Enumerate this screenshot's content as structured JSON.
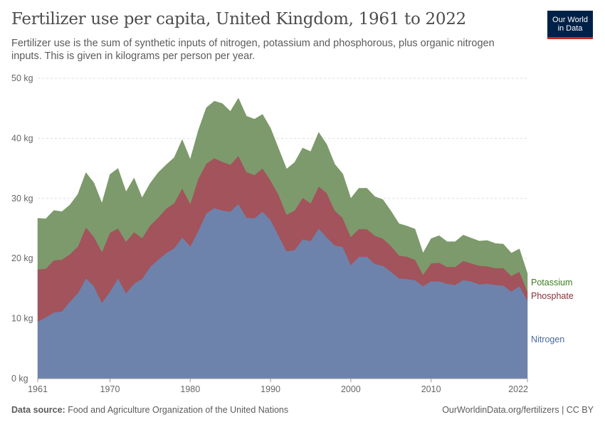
{
  "title": "Fertilizer use per capita, United Kingdom, 1961 to 2022",
  "subtitle": "Fertilizer use is the sum of synthetic inputs of nitrogen, potassium and phosphorous, plus organic nitrogen inputs. This is given in kilograms per person per year.",
  "logo": {
    "line1": "Our World",
    "line2": "in Data"
  },
  "footer": {
    "source_label": "Data source:",
    "source_text": "Food and Agriculture Organization of the United Nations",
    "url": "OurWorldinData.org/fertilizers | CC BY"
  },
  "chart_data": {
    "type": "area",
    "stacked": true,
    "title": "Fertilizer use per capita, United Kingdom, 1961 to 2022",
    "xlabel": "",
    "ylabel": "",
    "xlim": [
      1961,
      2022
    ],
    "ylim": [
      0,
      50
    ],
    "x_ticks": [
      1961,
      1970,
      1980,
      1990,
      2000,
      2010,
      2022
    ],
    "y_ticks": [
      0,
      10,
      20,
      30,
      40,
      50
    ],
    "y_tick_labels": [
      "0 kg",
      "10 kg",
      "20 kg",
      "30 kg",
      "40 kg",
      "50 kg"
    ],
    "grid": "horizontal",
    "legend": "right-inline",
    "x": [
      1961,
      1962,
      1963,
      1964,
      1965,
      1966,
      1967,
      1968,
      1969,
      1970,
      1971,
      1972,
      1973,
      1974,
      1975,
      1976,
      1977,
      1978,
      1979,
      1980,
      1981,
      1982,
      1983,
      1984,
      1985,
      1986,
      1987,
      1988,
      1989,
      1990,
      1991,
      1992,
      1993,
      1994,
      1995,
      1996,
      1997,
      1998,
      1999,
      2000,
      2001,
      2002,
      2003,
      2004,
      2005,
      2006,
      2007,
      2008,
      2009,
      2010,
      2011,
      2012,
      2013,
      2014,
      2015,
      2016,
      2017,
      2018,
      2019,
      2020,
      2021,
      2022
    ],
    "series": [
      {
        "name": "Nitrogen",
        "color": "#6d83ac",
        "values": [
          9.5,
          10.2,
          11.0,
          11.2,
          12.8,
          14.2,
          16.7,
          15.4,
          12.6,
          14.5,
          16.7,
          14.2,
          15.8,
          16.6,
          18.6,
          19.8,
          20.9,
          21.7,
          23.5,
          22.0,
          24.6,
          27.5,
          28.4,
          28.0,
          27.8,
          29.1,
          26.8,
          26.7,
          27.8,
          26.4,
          23.8,
          21.2,
          21.4,
          23.2,
          22.9,
          25.0,
          23.5,
          22.2,
          21.9,
          18.9,
          20.3,
          20.3,
          19.1,
          18.8,
          17.8,
          16.7,
          16.6,
          16.4,
          15.4,
          16.2,
          16.2,
          15.8,
          15.6,
          16.4,
          16.2,
          15.7,
          15.8,
          15.6,
          15.5,
          14.5,
          15.4,
          13.0
        ]
      },
      {
        "name": "Phosphate",
        "color": "#a2535b",
        "values": [
          8.7,
          8.1,
          8.7,
          8.6,
          7.9,
          7.8,
          8.5,
          8.2,
          8.5,
          9.8,
          8.3,
          8.6,
          8.6,
          6.8,
          6.9,
          7.0,
          7.4,
          7.5,
          8.2,
          7.1,
          8.7,
          8.3,
          8.3,
          8.1,
          7.8,
          8.0,
          7.6,
          7.2,
          7.2,
          6.6,
          6.8,
          6.1,
          6.6,
          6.9,
          6.3,
          7.0,
          7.4,
          5.8,
          4.8,
          4.7,
          4.6,
          4.6,
          4.7,
          4.5,
          4.3,
          3.8,
          3.7,
          3.4,
          1.9,
          3.0,
          3.1,
          2.8,
          3.0,
          3.2,
          3.0,
          3.1,
          2.9,
          2.8,
          2.9,
          2.6,
          2.4,
          1.5
        ]
      },
      {
        "name": "Potassium",
        "color": "#7c9a6b",
        "values": [
          8.5,
          8.3,
          8.3,
          8.0,
          8.2,
          8.7,
          9.1,
          9.0,
          8.1,
          9.7,
          10.0,
          8.3,
          9.0,
          6.7,
          7.0,
          7.5,
          7.3,
          7.6,
          8.1,
          7.4,
          8.0,
          9.3,
          9.5,
          9.7,
          8.9,
          9.6,
          9.3,
          9.3,
          9.0,
          8.7,
          7.7,
          7.6,
          8.0,
          8.3,
          8.6,
          9.0,
          8.1,
          7.7,
          7.4,
          6.4,
          6.8,
          6.8,
          6.5,
          6.5,
          5.8,
          5.3,
          5.1,
          5.1,
          3.6,
          4.1,
          4.5,
          4.2,
          4.2,
          4.3,
          4.2,
          4.1,
          4.3,
          4.1,
          4.0,
          3.8,
          3.8,
          3.0
        ]
      }
    ]
  }
}
